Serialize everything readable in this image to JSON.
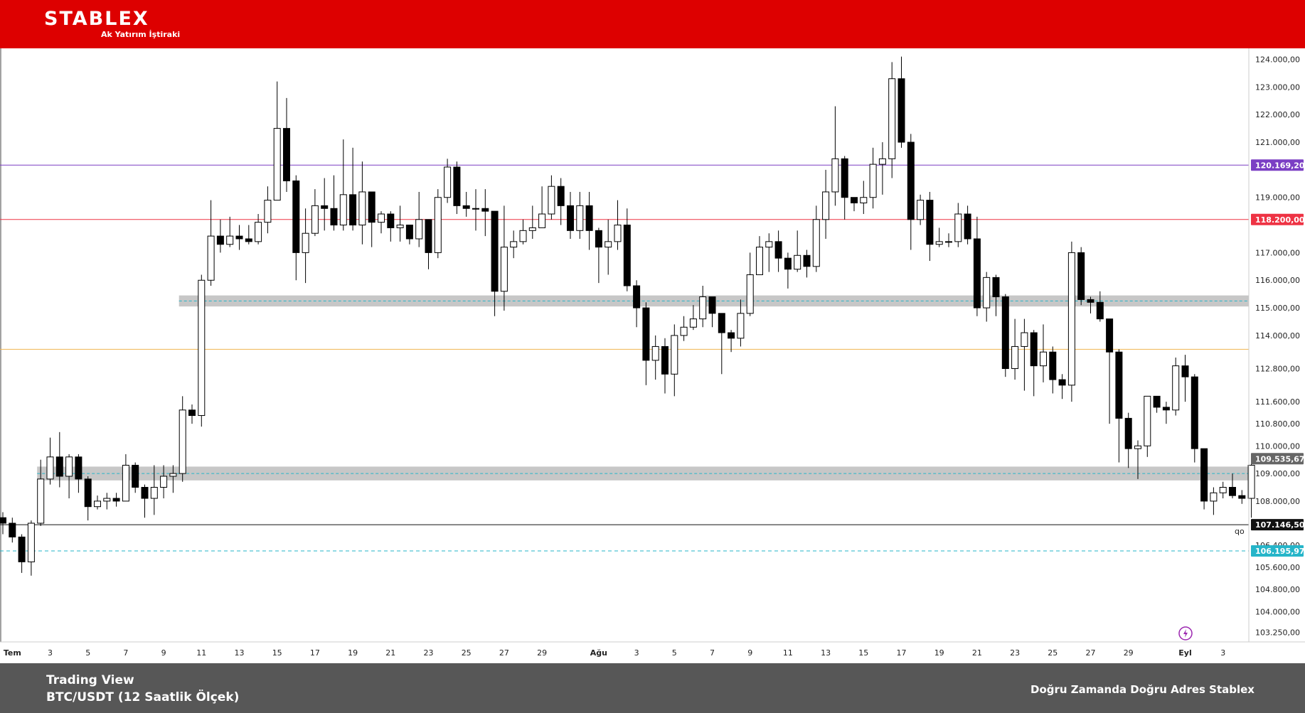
{
  "header": {
    "brand": "STABLEX",
    "subtitle": "Ak Yatırım İştiraki",
    "colors": {
      "bar": "#dd0000",
      "text": "#ffffff"
    }
  },
  "footer": {
    "source": "Trading View",
    "pair": "BTC/USDT (12 Saatlik Ölçek)",
    "slogan": "Doğru Zamanda Doğru Adres Stablex",
    "colors": {
      "bar": "#575757"
    }
  },
  "chart_data": {
    "type": "candlestick",
    "title": "",
    "x_axis": {
      "labels": [
        "Tem",
        "3",
        "5",
        "7",
        "9",
        "11",
        "13",
        "15",
        "17",
        "19",
        "21",
        "23",
        "25",
        "27",
        "29",
        "Ağu",
        "3",
        "5",
        "7",
        "9",
        "11",
        "13",
        "15",
        "17",
        "19",
        "21",
        "23",
        "25",
        "27",
        "29",
        "Eyl",
        "3"
      ],
      "label_index": [
        1,
        5,
        9,
        13,
        17,
        21,
        25,
        29,
        33,
        37,
        41,
        45,
        49,
        53,
        57,
        63,
        67,
        71,
        75,
        79,
        83,
        87,
        91,
        95,
        99,
        103,
        107,
        111,
        115,
        119,
        125,
        129
      ]
    },
    "y_axis": {
      "ticks": [
        "124.000,00",
        "123.000,00",
        "122.000,00",
        "121.000,00",
        "119.000,00",
        "117.000,00",
        "116.000,00",
        "115.000,00",
        "114.000,00",
        "112.800,00",
        "111.600,00",
        "110.800,00",
        "110.000,00",
        "109.000,00",
        "108.000,00",
        "106.400,00",
        "105.600,00",
        "104.800,00",
        "104.000,00",
        "103.250,00"
      ],
      "tick_values": [
        124000,
        123000,
        122000,
        121000,
        119000,
        117000,
        116000,
        115000,
        114000,
        112800,
        111600,
        110800,
        110000,
        109000,
        108000,
        106400,
        105600,
        104800,
        104000,
        103250
      ],
      "range": [
        102900,
        124400
      ],
      "position": "right"
    },
    "levels": [
      {
        "value": 120169.2,
        "label": "120.169,20",
        "color": "#7b3fc4",
        "style": "solid"
      },
      {
        "value": 118200.0,
        "label": "118.200,00",
        "color": "#ee3344",
        "style": "solid"
      },
      {
        "value": 113500.0,
        "label": "",
        "color": "#f0b450",
        "style": "solid"
      },
      {
        "value": 109535.67,
        "label": "109.535,67",
        "color": "#666666",
        "style": "none"
      },
      {
        "value": 107146.5,
        "label": "107.146,50",
        "color": "#111111",
        "style": "solid"
      },
      {
        "value": 106195.97,
        "label": "106.195,97",
        "color": "#26b5c9",
        "style": "dashed"
      }
    ],
    "zones": [
      {
        "from": 115050,
        "to": 115450,
        "mid": 115250,
        "start_index": 19
      },
      {
        "from": 108750,
        "to": 109250,
        "mid": 109000,
        "start_index": 4
      }
    ],
    "candles": [
      [
        107400,
        107200,
        107600,
        106800
      ],
      [
        107200,
        106700,
        107400,
        106500
      ],
      [
        106700,
        105800,
        106800,
        105400
      ],
      [
        105800,
        107200,
        107300,
        105300
      ],
      [
        107200,
        108800,
        109500,
        107100
      ],
      [
        108800,
        109600,
        110300,
        108600
      ],
      [
        109600,
        108900,
        110500,
        108500
      ],
      [
        108900,
        109600,
        109700,
        108100
      ],
      [
        109600,
        108800,
        109700,
        108300
      ],
      [
        108800,
        107800,
        108900,
        107300
      ],
      [
        107800,
        108000,
        108200,
        107700
      ],
      [
        108000,
        108100,
        108300,
        107700
      ],
      [
        108100,
        108000,
        108300,
        107800
      ],
      [
        108000,
        109300,
        109700,
        108000
      ],
      [
        109300,
        108500,
        109400,
        108300
      ],
      [
        108500,
        108100,
        108600,
        107400
      ],
      [
        108100,
        108500,
        109300,
        107500
      ],
      [
        108500,
        108900,
        109300,
        108100
      ],
      [
        108900,
        109000,
        109300,
        108300
      ],
      [
        109000,
        111300,
        111800,
        108700
      ],
      [
        111300,
        111100,
        111500,
        110800
      ],
      [
        111100,
        116000,
        116200,
        110700
      ],
      [
        116000,
        117600,
        118900,
        115800
      ],
      [
        117600,
        117300,
        118200,
        117000
      ],
      [
        117300,
        117600,
        118300,
        117200
      ],
      [
        117600,
        117500,
        118000,
        117100
      ],
      [
        117500,
        117400,
        118000,
        117300
      ],
      [
        117400,
        118100,
        118400,
        117300
      ],
      [
        118100,
        118900,
        119400,
        117700
      ],
      [
        118900,
        121500,
        123200,
        118900
      ],
      [
        121500,
        119600,
        122600,
        119200
      ],
      [
        119600,
        117000,
        119800,
        116000
      ],
      [
        117000,
        117700,
        118600,
        115900
      ],
      [
        117700,
        118700,
        119300,
        117600
      ],
      [
        118700,
        118600,
        119700,
        117800
      ],
      [
        118600,
        118000,
        119800,
        117800
      ],
      [
        118000,
        119100,
        121100,
        117800
      ],
      [
        119100,
        118000,
        120800,
        117800
      ],
      [
        118000,
        119200,
        120300,
        117300
      ],
      [
        119200,
        118100,
        119200,
        117200
      ],
      [
        118100,
        118400,
        118500,
        117700
      ],
      [
        118400,
        117900,
        118500,
        117400
      ],
      [
        117900,
        118000,
        118700,
        117400
      ],
      [
        118000,
        117500,
        118000,
        117300
      ],
      [
        117500,
        118200,
        119200,
        117200
      ],
      [
        118200,
        117000,
        118200,
        116400
      ],
      [
        117000,
        119000,
        119300,
        116800
      ],
      [
        119000,
        120100,
        120400,
        118800
      ],
      [
        120100,
        118700,
        120300,
        118400
      ],
      [
        118700,
        118600,
        119200,
        118300
      ],
      [
        118600,
        118600,
        119300,
        117800
      ],
      [
        118600,
        118500,
        119300,
        117600
      ],
      [
        118500,
        115600,
        118500,
        114700
      ],
      [
        115600,
        117200,
        118700,
        114900
      ],
      [
        117200,
        117400,
        117800,
        116800
      ],
      [
        117400,
        117800,
        118200,
        117300
      ],
      [
        117800,
        117900,
        118700,
        117500
      ],
      [
        117900,
        118400,
        119400,
        117900
      ],
      [
        118400,
        119400,
        119800,
        118200
      ],
      [
        119400,
        118700,
        119700,
        118000
      ],
      [
        118700,
        117800,
        119200,
        117500
      ],
      [
        117800,
        118700,
        119200,
        117500
      ],
      [
        118700,
        117800,
        119200,
        117100
      ],
      [
        117800,
        117200,
        117900,
        115900
      ],
      [
        117200,
        117400,
        118200,
        116200
      ],
      [
        117400,
        118000,
        118900,
        117100
      ],
      [
        118000,
        115800,
        118600,
        115600
      ],
      [
        115800,
        115000,
        116000,
        114300
      ],
      [
        115000,
        113100,
        115200,
        112200
      ],
      [
        113100,
        113600,
        114000,
        112400
      ],
      [
        113600,
        112600,
        113900,
        111900
      ],
      [
        112600,
        114000,
        114400,
        111800
      ],
      [
        114000,
        114300,
        114700,
        113800
      ],
      [
        114300,
        114600,
        115100,
        114200
      ],
      [
        114600,
        115400,
        115800,
        114300
      ],
      [
        115400,
        114800,
        115300,
        114300
      ],
      [
        114800,
        114100,
        114800,
        112600
      ],
      [
        114100,
        113900,
        114200,
        113400
      ],
      [
        113900,
        114800,
        115300,
        113600
      ],
      [
        114800,
        116200,
        117000,
        114700
      ],
      [
        116200,
        117200,
        117600,
        116300
      ],
      [
        117200,
        117400,
        117700,
        116300
      ],
      [
        117400,
        116800,
        117800,
        116300
      ],
      [
        116800,
        116400,
        117000,
        115700
      ],
      [
        116400,
        116900,
        117800,
        116300
      ],
      [
        116900,
        116500,
        117100,
        116100
      ],
      [
        116500,
        118200,
        118700,
        116300
      ],
      [
        118200,
        119200,
        120000,
        117500
      ],
      [
        119200,
        120400,
        122300,
        118700
      ],
      [
        120400,
        119000,
        120500,
        118200
      ],
      [
        119000,
        118800,
        118800,
        118500
      ],
      [
        118800,
        119000,
        119600,
        118400
      ],
      [
        119000,
        120200,
        120800,
        118600
      ],
      [
        120200,
        120400,
        121000,
        119100
      ],
      [
        120400,
        123300,
        123900,
        119700
      ],
      [
        123300,
        121000,
        124100,
        120800
      ],
      [
        121000,
        118200,
        121300,
        117100
      ],
      [
        118200,
        118900,
        119100,
        118000
      ],
      [
        118900,
        117300,
        119200,
        116700
      ],
      [
        117300,
        117400,
        117900,
        117200
      ],
      [
        117400,
        117400,
        117700,
        117200
      ],
      [
        117400,
        118400,
        118800,
        117200
      ],
      [
        118400,
        117500,
        118700,
        117300
      ],
      [
        117500,
        115000,
        118300,
        114700
      ],
      [
        115000,
        116100,
        116300,
        114500
      ],
      [
        116100,
        115400,
        116200,
        114700
      ],
      [
        115400,
        112800,
        115500,
        112500
      ],
      [
        112800,
        113600,
        114600,
        112400
      ],
      [
        113600,
        114100,
        114600,
        112000
      ],
      [
        114100,
        112900,
        114200,
        111800
      ],
      [
        112900,
        113400,
        114400,
        112300
      ],
      [
        113400,
        112400,
        113600,
        111900
      ],
      [
        112400,
        112200,
        112600,
        111700
      ],
      [
        112200,
        117000,
        117400,
        111600
      ],
      [
        117000,
        115300,
        117200,
        115100
      ],
      [
        115300,
        115200,
        115400,
        114800
      ],
      [
        115200,
        114600,
        115600,
        114500
      ],
      [
        114600,
        113400,
        114600,
        110800
      ],
      [
        113400,
        111000,
        113500,
        109400
      ],
      [
        111000,
        109900,
        111200,
        109200
      ],
      [
        109900,
        110000,
        110200,
        108800
      ],
      [
        110000,
        111800,
        111800,
        109600
      ],
      [
        111800,
        111400,
        111800,
        111200
      ],
      [
        111400,
        111300,
        111600,
        110800
      ],
      [
        111300,
        112900,
        113200,
        111100
      ],
      [
        112900,
        112500,
        113300,
        111600
      ],
      [
        112500,
        109900,
        112600,
        109400
      ],
      [
        109900,
        108000,
        109900,
        107700
      ],
      [
        108000,
        108300,
        108500,
        107500
      ],
      [
        108300,
        108500,
        108700,
        108100
      ],
      [
        108500,
        108200,
        109000,
        108100
      ],
      [
        108200,
        108100,
        108400,
        107900
      ],
      [
        108100,
        109300,
        109600,
        107400
      ]
    ],
    "style": {
      "up": "#ffffff",
      "down": "#000000",
      "wick": "#000000",
      "grid": false
    },
    "annotation": "qo"
  }
}
